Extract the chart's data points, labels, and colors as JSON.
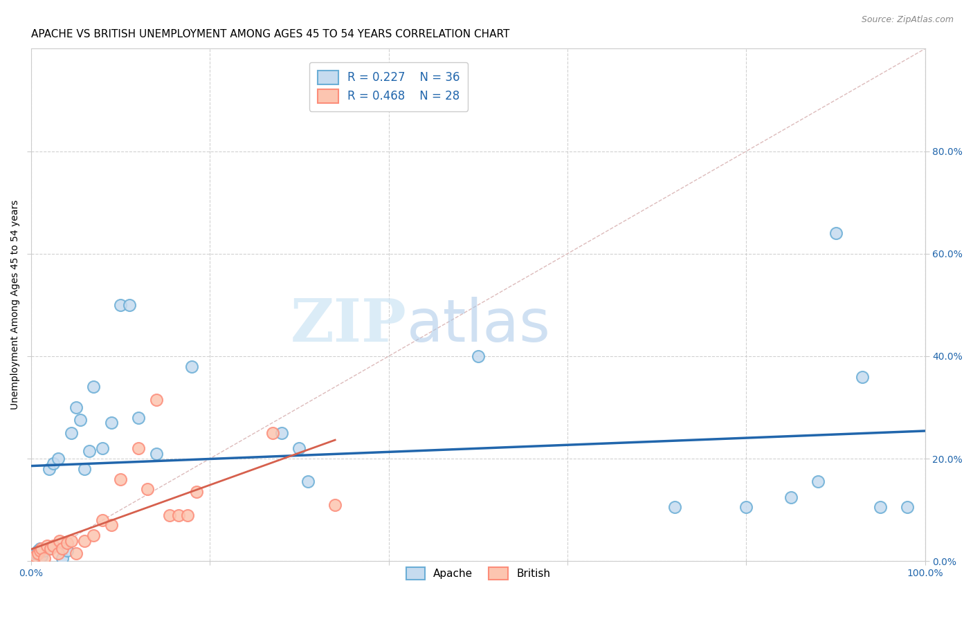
{
  "title": "APACHE VS BRITISH UNEMPLOYMENT AMONG AGES 45 TO 54 YEARS CORRELATION CHART",
  "source": "Source: ZipAtlas.com",
  "ylabel": "Unemployment Among Ages 45 to 54 years",
  "xlim": [
    0,
    1.0
  ],
  "ylim": [
    0,
    1.0
  ],
  "xticks": [
    0.0,
    0.2,
    0.4,
    0.6,
    0.8,
    1.0
  ],
  "yticks": [
    0.0,
    0.2,
    0.4,
    0.6,
    0.8
  ],
  "xtick_labels": [
    "0.0%",
    "",
    "",
    "",
    "",
    "100.0%"
  ],
  "ytick_labels_right": [
    "0.0%",
    "20.0%",
    "40.0%",
    "60.0%",
    "80.0%"
  ],
  "apache_color_face": "#c6dbef",
  "apache_color_edge": "#6baed6",
  "british_color_face": "#fcc5b0",
  "british_color_edge": "#fc8d7a",
  "trend_apache_color": "#2166ac",
  "trend_british_color": "#d6604d",
  "diagonal_color": "#cccccc",
  "watermark_zip": "ZIP",
  "watermark_atlas": "atlas",
  "legend_r_apache": "R = 0.227",
  "legend_n_apache": "N = 36",
  "legend_r_british": "R = 0.468",
  "legend_n_british": "N = 28",
  "legend_label_apache": "Apache",
  "legend_label_british": "British",
  "apache_x": [
    0.005,
    0.008,
    0.01,
    0.012,
    0.015,
    0.02,
    0.02,
    0.025,
    0.03,
    0.035,
    0.04,
    0.045,
    0.05,
    0.055,
    0.06,
    0.065,
    0.07,
    0.08,
    0.09,
    0.1,
    0.11,
    0.12,
    0.14,
    0.18,
    0.28,
    0.3,
    0.31,
    0.5,
    0.72,
    0.8,
    0.85,
    0.88,
    0.9,
    0.93,
    0.95,
    0.98
  ],
  "apache_y": [
    0.015,
    0.02,
    0.025,
    0.01,
    0.02,
    0.025,
    0.18,
    0.19,
    0.2,
    0.005,
    0.02,
    0.25,
    0.3,
    0.275,
    0.18,
    0.215,
    0.34,
    0.22,
    0.27,
    0.5,
    0.5,
    0.28,
    0.21,
    0.38,
    0.25,
    0.22,
    0.155,
    0.4,
    0.105,
    0.105,
    0.125,
    0.155,
    0.64,
    0.36,
    0.105,
    0.105
  ],
  "british_x": [
    0.005,
    0.008,
    0.01,
    0.012,
    0.015,
    0.018,
    0.022,
    0.025,
    0.03,
    0.032,
    0.035,
    0.04,
    0.045,
    0.05,
    0.06,
    0.07,
    0.08,
    0.09,
    0.1,
    0.12,
    0.13,
    0.14,
    0.155,
    0.165,
    0.175,
    0.185,
    0.27,
    0.34
  ],
  "british_y": [
    0.01,
    0.015,
    0.02,
    0.025,
    0.005,
    0.03,
    0.025,
    0.03,
    0.015,
    0.04,
    0.025,
    0.035,
    0.04,
    0.015,
    0.04,
    0.05,
    0.08,
    0.07,
    0.16,
    0.22,
    0.14,
    0.315,
    0.09,
    0.09,
    0.09,
    0.135,
    0.25,
    0.11
  ],
  "title_fontsize": 11,
  "axis_fontsize": 10,
  "tick_fontsize": 10,
  "source_fontsize": 9
}
